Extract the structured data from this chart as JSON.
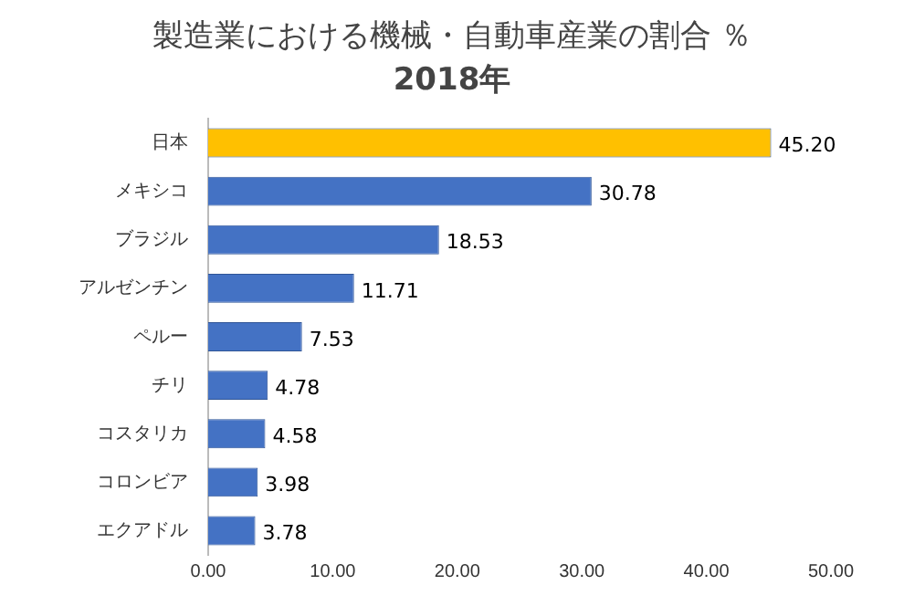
{
  "chart_data": {
    "type": "bar",
    "orientation": "horizontal",
    "title": "製造業における機械・自動車産業の割合 ％",
    "subtitle": "2018年",
    "categories": [
      "日本",
      "メキシコ",
      "ブラジル",
      "アルゼンチン",
      "ペルー",
      "チリ",
      "コスタリカ",
      "コロンビア",
      "エクアドル"
    ],
    "values": [
      45.2,
      30.78,
      18.53,
      11.71,
      7.53,
      4.78,
      4.58,
      3.98,
      3.78
    ],
    "colors": [
      "#ffc000",
      "#4472c4",
      "#4472c4",
      "#4472c4",
      "#4472c4",
      "#4472c4",
      "#4472c4",
      "#4472c4",
      "#4472c4"
    ],
    "value_labels": [
      "45.20",
      "30.78",
      "18.53",
      "11.71",
      "7.53",
      "4.78",
      "4.58",
      "3.98",
      "3.78"
    ],
    "xlim": [
      0,
      50
    ],
    "xticks": [
      {
        "value": 0,
        "label": "0.00"
      },
      {
        "value": 10,
        "label": "10.00"
      },
      {
        "value": 20,
        "label": "20.00"
      },
      {
        "value": 30,
        "label": "30.00"
      },
      {
        "value": 40,
        "label": "40.00"
      },
      {
        "value": 50,
        "label": "50.00"
      }
    ],
    "grid": false,
    "legend": false
  }
}
